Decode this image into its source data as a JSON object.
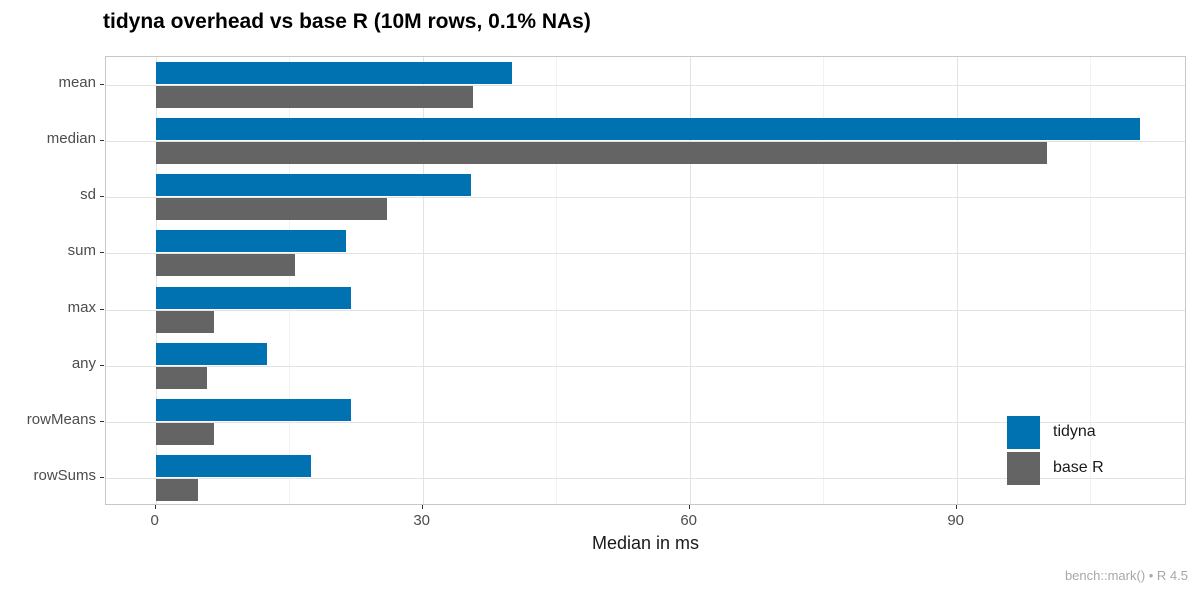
{
  "title": "tidyna overhead vs base R (10M rows, 0.1% NAs)",
  "caption": "bench::mark() • R 4.5",
  "colors": {
    "tidyna": "#0072B2",
    "base_r": "#646464",
    "grid_major": "#e3e3e3",
    "grid_minor": "#f2f2f2",
    "panel_border": "#c7c7c7",
    "tick_mark": "#333333",
    "tick_label": "#4d4d4d",
    "caption_text": "#a8a8a8"
  },
  "chart_data": {
    "type": "bar",
    "orientation": "horizontal",
    "title": "tidyna overhead vs base R (10M rows, 0.1% NAs)",
    "xlabel": "Median in ms",
    "ylabel": "",
    "categories": [
      "mean",
      "median",
      "sd",
      "sum",
      "max",
      "any",
      "rowMeans",
      "rowSums"
    ],
    "series": [
      {
        "name": "tidyna",
        "color": "#0072B2",
        "values": [
          40.0,
          110.6,
          35.4,
          21.4,
          21.9,
          12.5,
          21.9,
          17.4
        ]
      },
      {
        "name": "base R",
        "color": "#646464",
        "values": [
          35.6,
          100.1,
          26.0,
          15.7,
          6.5,
          5.8,
          6.6,
          4.7
        ]
      }
    ],
    "x_major_ticks": [
      0,
      30,
      60,
      90
    ],
    "x_minor_ticks": [
      15,
      45,
      75,
      105
    ],
    "xlim": [
      -5.6,
      115.9
    ],
    "grid": true,
    "legend_position": "inside-bottom-right",
    "source_note": "bench::mark() • R 4.5"
  }
}
